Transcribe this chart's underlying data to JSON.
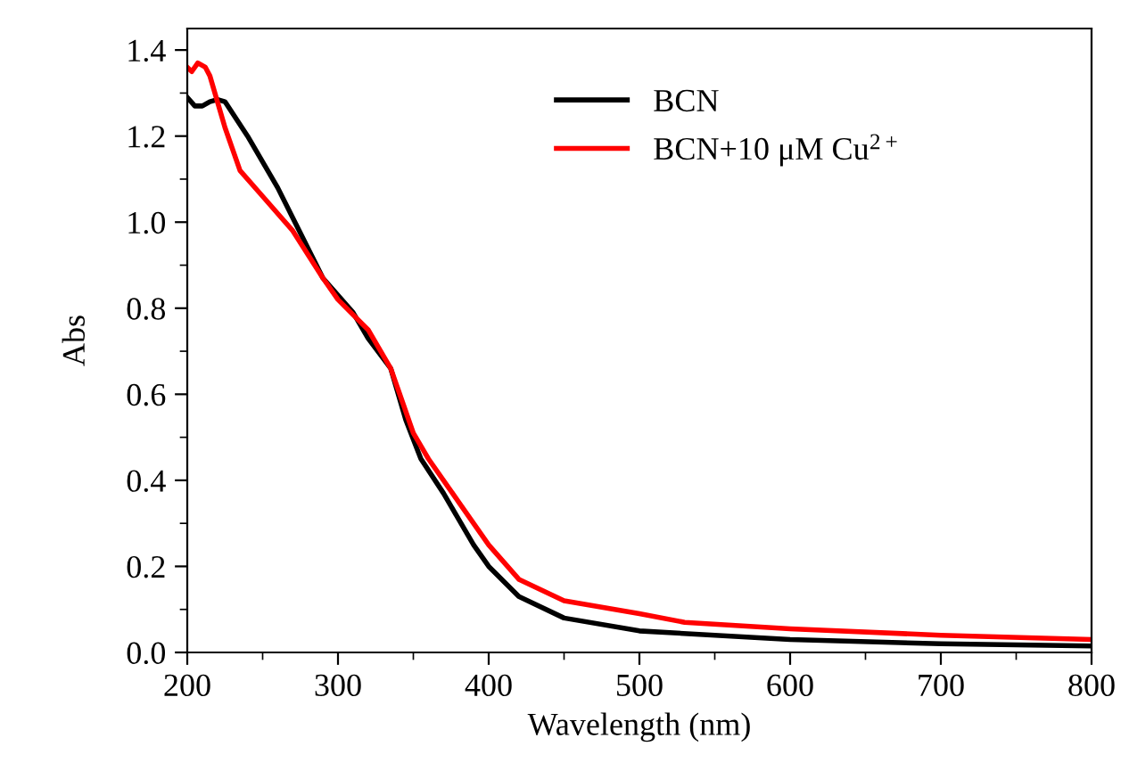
{
  "chart_data": {
    "type": "line",
    "xlabel": "Wavelength (nm)",
    "ylabel": "Abs",
    "xlim": [
      200,
      800
    ],
    "xticks": [
      200,
      300,
      400,
      500,
      600,
      700,
      800
    ],
    "ylim": [
      0,
      1.45
    ],
    "yticks": [
      {
        "value": 0,
        "label": "0.0"
      },
      0.2,
      0.4,
      0.6,
      0.8,
      {
        "value": 1,
        "label": "1.0"
      },
      1.2,
      1.4
    ],
    "legend": "top",
    "grid": false,
    "marker": "none",
    "line_style": "solid",
    "series": [
      {
        "name": "BCN",
        "color": "#000000",
        "x": [
          200,
          205,
          210,
          215,
          220,
          225,
          240,
          260,
          280,
          290,
          300,
          310,
          320,
          335,
          345,
          355,
          370,
          390,
          400,
          420,
          450,
          500,
          600,
          700,
          800
        ],
        "values": [
          1.29,
          1.27,
          1.27,
          1.28,
          1.285,
          1.28,
          1.2,
          1.08,
          0.94,
          0.87,
          0.83,
          0.79,
          0.73,
          0.66,
          0.54,
          0.45,
          0.37,
          0.25,
          0.2,
          0.13,
          0.08,
          0.05,
          0.03,
          0.02,
          0.015
        ]
      },
      {
        "name": "BCN+10 μM Cu$^{2+}$",
        "color": "#ff0000",
        "x": [
          200,
          203,
          207,
          212,
          215,
          225,
          235,
          250,
          270,
          290,
          300,
          320,
          335,
          340,
          350,
          360,
          380,
          400,
          420,
          450,
          500,
          530,
          600,
          700,
          800
        ],
        "values": [
          1.36,
          1.35,
          1.37,
          1.36,
          1.34,
          1.22,
          1.12,
          1.06,
          0.98,
          0.87,
          0.82,
          0.75,
          0.66,
          0.61,
          0.51,
          0.45,
          0.35,
          0.25,
          0.17,
          0.12,
          0.09,
          0.07,
          0.055,
          0.04,
          0.03
        ]
      }
    ]
  }
}
